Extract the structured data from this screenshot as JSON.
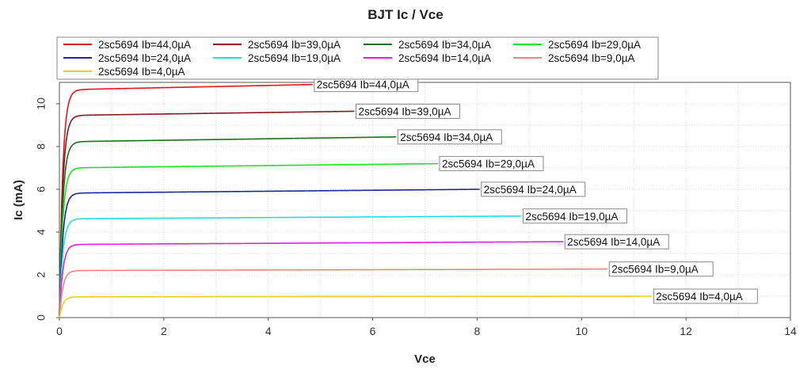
{
  "chart_data": {
    "type": "line",
    "title": "BJT Ic / Vce",
    "xlabel": "Vce",
    "ylabel": "Ic (mA)",
    "xlim": [
      0,
      14
    ],
    "ylim": [
      0,
      11
    ],
    "xticks": [
      0,
      2,
      4,
      6,
      8,
      10,
      12,
      14
    ],
    "yticks": [
      0,
      2,
      4,
      6,
      8,
      10
    ],
    "grid": true,
    "legend_position": "top",
    "series": [
      {
        "name": "2sc5694 Ib=44,0µA",
        "color": "#e8141c",
        "knee": 0.18,
        "i_start": 10.65,
        "i_end": 10.9,
        "vce_end": 4.85
      },
      {
        "name": "2sc5694 Ib=39,0µA",
        "color": "#8b1a1a",
        "knee": 0.18,
        "i_start": 9.45,
        "i_end": 9.65,
        "vce_end": 5.65
      },
      {
        "name": "2sc5694 Ib=34,0µA",
        "color": "#1d6e1d",
        "knee": 0.18,
        "i_start": 8.22,
        "i_end": 8.45,
        "vce_end": 6.45
      },
      {
        "name": "2sc5694 Ib=29,0µA",
        "color": "#22e022",
        "knee": 0.18,
        "i_start": 7.0,
        "i_end": 7.2,
        "vce_end": 7.25
      },
      {
        "name": "2sc5694 Ib=24,0µA",
        "color": "#1a2a9a",
        "knee": 0.18,
        "i_start": 5.82,
        "i_end": 6.0,
        "vce_end": 8.05
      },
      {
        "name": "2sc5694 Ib=19,0µA",
        "color": "#22dde0",
        "knee": 0.18,
        "i_start": 4.62,
        "i_end": 4.75,
        "vce_end": 8.85
      },
      {
        "name": "2sc5694 Ib=14,0µA",
        "color": "#dd22dd",
        "knee": 0.18,
        "i_start": 3.42,
        "i_end": 3.55,
        "vce_end": 9.65
      },
      {
        "name": "2sc5694 Ib=9,0µA",
        "color": "#f08878",
        "knee": 0.18,
        "i_start": 2.2,
        "i_end": 2.27,
        "vce_end": 10.5
      },
      {
        "name": "2sc5694 Ib=4,0µA",
        "color": "#e8cf1a",
        "knee": 0.18,
        "i_start": 0.97,
        "i_end": 1.0,
        "vce_end": 11.35
      }
    ]
  }
}
